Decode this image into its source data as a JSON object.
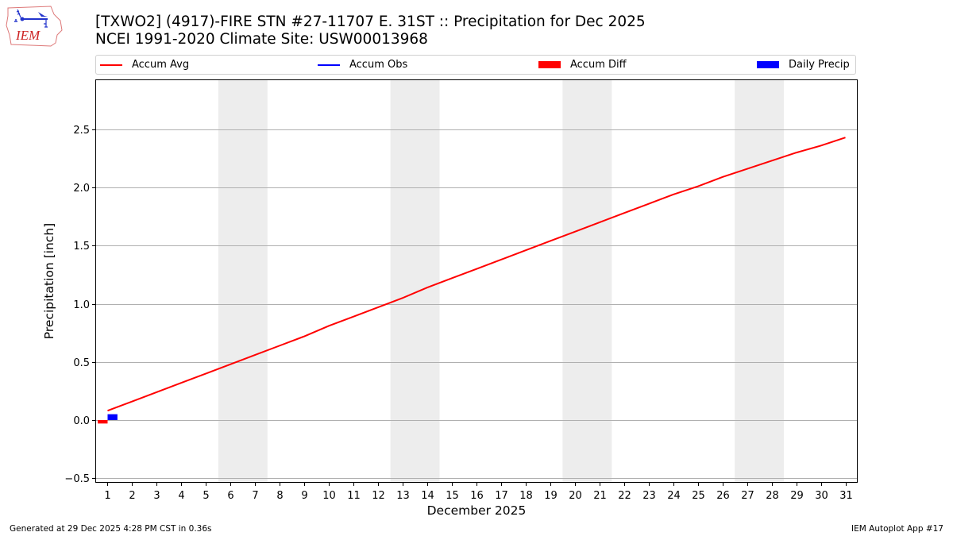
{
  "header": {
    "logo_text": "IEM",
    "title_line1": "[TXWO2] (4917)-FIRE STN #27-11707 E. 31ST :: Precipitation for Dec 2025",
    "title_line2": "NCEI 1991-2020 Climate Site: USW00013968"
  },
  "legend": {
    "items": [
      {
        "label": "Accum Avg",
        "kind": "line",
        "color": "#ff0000"
      },
      {
        "label": "Accum Obs",
        "kind": "line",
        "color": "#0000ff"
      },
      {
        "label": "Accum Diff",
        "kind": "patch",
        "color": "#ff0000"
      },
      {
        "label": "Daily Precip",
        "kind": "patch",
        "color": "#0000ff"
      }
    ]
  },
  "footer": {
    "generated": "Generated at 29 Dec 2025 4:28 PM CST in 0.36s",
    "app": "IEM Autoplot App #17"
  },
  "colors": {
    "accum_avg": "#ff0000",
    "accum_obs": "#0000ff",
    "accum_diff": "#ff0000",
    "daily_precip": "#0000ff",
    "weekend_band": "#ededed",
    "grid": "#b0b0b0"
  },
  "chart_data": {
    "type": "line",
    "title": "[TXWO2] (4917)-FIRE STN #27-11707 E. 31ST :: Precipitation for Dec 2025",
    "subtitle": "NCEI 1991-2020 Climate Site: USW00013968",
    "xlabel": "December 2025",
    "ylabel": "Precipitation [inch]",
    "x": [
      1,
      2,
      3,
      4,
      5,
      6,
      7,
      8,
      9,
      10,
      11,
      12,
      13,
      14,
      15,
      16,
      17,
      18,
      19,
      20,
      21,
      22,
      23,
      24,
      25,
      26,
      27,
      28,
      29,
      30,
      31
    ],
    "x_tick_labels": [
      "1",
      "2",
      "3",
      "4",
      "5",
      "6",
      "7",
      "8",
      "9",
      "10",
      "11",
      "12",
      "13",
      "14",
      "15",
      "16",
      "17",
      "18",
      "19",
      "20",
      "21",
      "22",
      "23",
      "24",
      "25",
      "26",
      "27",
      "28",
      "29",
      "30",
      "31"
    ],
    "y_ticks": [
      -0.5,
      0.0,
      0.5,
      1.0,
      1.5,
      2.0,
      2.5
    ],
    "y_tick_labels": [
      "−0.5",
      "0.0",
      "0.5",
      "1.0",
      "1.5",
      "2.0",
      "2.5"
    ],
    "xlim": [
      0.5,
      31.5
    ],
    "ylim": [
      -0.54,
      2.93
    ],
    "grid": "y",
    "legend_position": "top, above plot",
    "weekend_bands": [
      [
        5.5,
        7.5
      ],
      [
        12.5,
        14.5
      ],
      [
        19.5,
        21.5
      ],
      [
        26.5,
        28.5
      ]
    ],
    "series": [
      {
        "name": "Accum Avg",
        "type": "line",
        "color": "#ff0000",
        "values": [
          0.08,
          0.16,
          0.24,
          0.32,
          0.4,
          0.48,
          0.56,
          0.64,
          0.72,
          0.81,
          0.89,
          0.97,
          1.05,
          1.14,
          1.22,
          1.3,
          1.38,
          1.46,
          1.54,
          1.62,
          1.7,
          1.78,
          1.86,
          1.94,
          2.01,
          2.09,
          2.16,
          2.23,
          2.3,
          2.36,
          2.43
        ]
      },
      {
        "name": "Accum Obs",
        "type": "line",
        "color": "#0000ff",
        "values": [
          0.05
        ]
      },
      {
        "name": "Accum Diff",
        "type": "bar",
        "color": "#ff0000",
        "x": [
          1
        ],
        "values": [
          -0.03
        ]
      },
      {
        "name": "Daily Precip",
        "type": "bar",
        "color": "#0000ff",
        "x": [
          1
        ],
        "values": [
          0.05
        ]
      }
    ]
  }
}
